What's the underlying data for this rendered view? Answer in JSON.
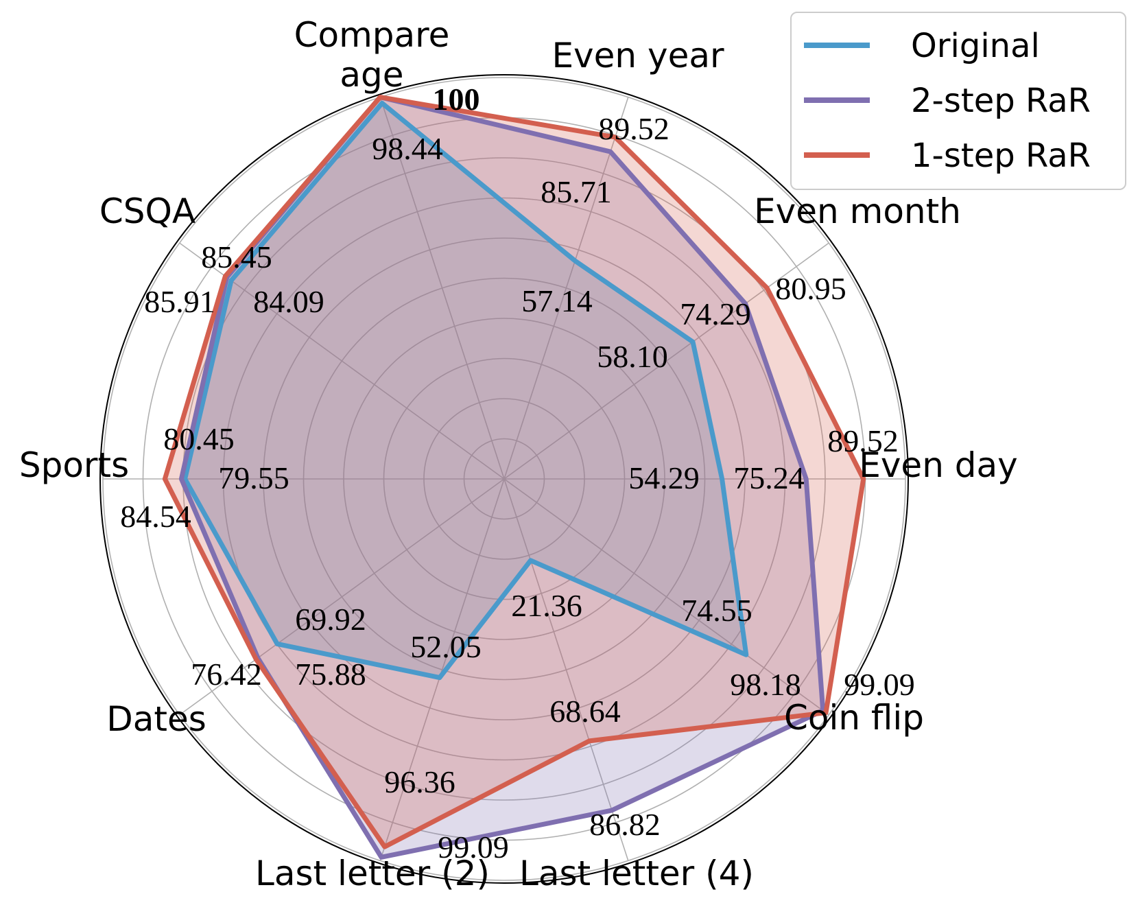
{
  "chart_data": {
    "type": "radar",
    "axes": [
      "Even day",
      "Even month",
      "Even year",
      "Compare age",
      "CSQA",
      "Sports",
      "Dates",
      "Last letter (2)",
      "Last letter (4)",
      "Coin flip"
    ],
    "axis_labels": [
      "Even day",
      "Even month",
      "Even year",
      "Compare\nage",
      "CSQA",
      "Sports",
      "Dates",
      "Last letter (2)",
      "Last letter (4)",
      "Coin flip"
    ],
    "rlim": [
      0,
      100
    ],
    "grid": true,
    "legend_position": "top-right",
    "series": [
      {
        "name": "Original",
        "color": "#4a9acb",
        "values": [
          54.29,
          58.1,
          57.14,
          98.44,
          84.09,
          79.55,
          69.92,
          52.05,
          21.36,
          74.55
        ]
      },
      {
        "name": "2-step RaR",
        "color": "#7f6fb0",
        "values": [
          75.24,
          74.29,
          85.71,
          100,
          85.45,
          80.45,
          75.88,
          99.09,
          86.82,
          98.18
        ]
      },
      {
        "name": "1-step RaR",
        "color": "#d35f4f",
        "values": [
          89.52,
          80.95,
          89.52,
          100,
          85.91,
          84.54,
          76.42,
          96.36,
          68.64,
          99.09
        ]
      }
    ],
    "annotations": [
      {
        "text": "54.29"
      },
      {
        "text": "75.24"
      },
      {
        "text": "89.52"
      },
      {
        "text": "58.10"
      },
      {
        "text": "74.29"
      },
      {
        "text": "80.95"
      },
      {
        "text": "57.14"
      },
      {
        "text": "85.71"
      },
      {
        "text": "89.52"
      },
      {
        "text": "98.44"
      },
      {
        "text": "100",
        "bold": true
      },
      {
        "text": "84.09"
      },
      {
        "text": "85.45"
      },
      {
        "text": "85.91"
      },
      {
        "text": "79.55"
      },
      {
        "text": "80.45"
      },
      {
        "text": "84.54"
      },
      {
        "text": "69.92"
      },
      {
        "text": "75.88"
      },
      {
        "text": "76.42"
      },
      {
        "text": "52.05"
      },
      {
        "text": "96.36"
      },
      {
        "text": "99.09"
      },
      {
        "text": "21.36"
      },
      {
        "text": "68.64"
      },
      {
        "text": "86.82"
      },
      {
        "text": "74.55"
      },
      {
        "text": "98.18"
      },
      {
        "text": "99.09"
      }
    ]
  }
}
